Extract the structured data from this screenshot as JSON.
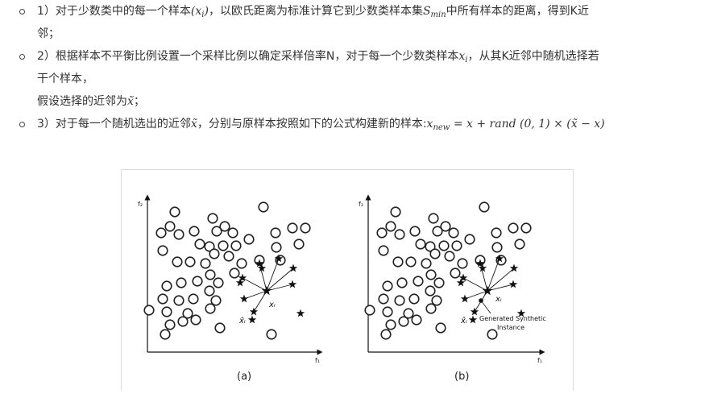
{
  "bullets": [
    {
      "prefix": "1）对于少数类中的每一个样本",
      "math1": "(x",
      "math1_sub": "i",
      "math1_end": ")",
      "mid": "，以欧氏距离为标准计算它到少数类样本集",
      "math2": "S",
      "math2_sub": "min",
      "suffix": "中所有样本的距离，得到K近",
      "wrap": "邻；"
    },
    {
      "prefix": "2）根据样本不平衡比例设置一个采样比例以确定采样倍率N，对于每一个少数类样本",
      "math1": "x",
      "math1_sub": "i",
      "suffix": "，从其K近邻中随机选择若",
      "wrap": "干个样本，",
      "extra": "假设选择的近邻为",
      "extra_math": "x̃",
      "extra_end": "；"
    },
    {
      "prefix": "3）对于每一个随机选出的近邻",
      "math1": "x̃",
      "mid": "，分别与原样本按照如下的公式构建新的样本:",
      "formula_lhs": "x",
      "formula_sub": "new",
      "formula_rhs": " = x + rand (0, 1) × (x̃ − x)"
    }
  ],
  "figure": {
    "panel_a": {
      "caption": "(a)",
      "y_axis_label": "f₂",
      "x_axis_label": "f₁",
      "center_label": "xᵢ",
      "neighbor_label": "x̂ᵢ"
    },
    "panel_b": {
      "caption": "(b)",
      "y_axis_label": "f₂",
      "x_axis_label": "f₁",
      "center_label": "xᵢ",
      "neighbor_label": "x̂ᵢ",
      "annotation_line1": "Generated Synthetic",
      "annotation_line2": "Instance"
    }
  }
}
